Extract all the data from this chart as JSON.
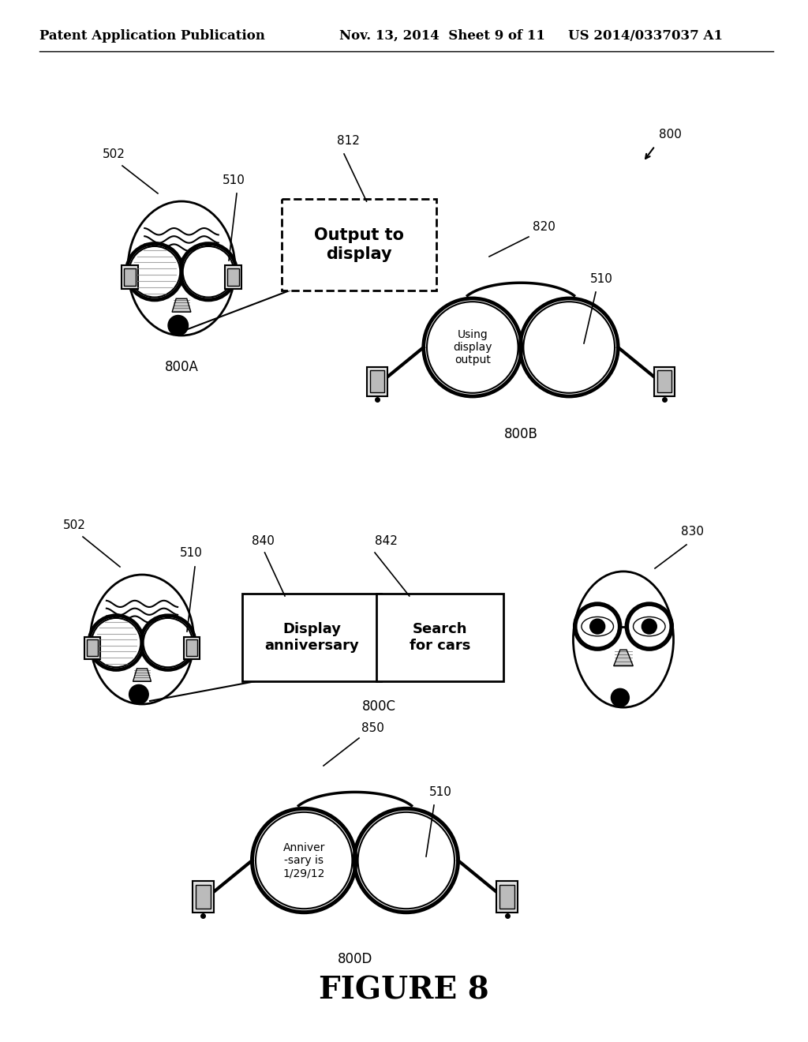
{
  "bg_color": "#ffffff",
  "header_left": "Patent Application Publication",
  "header_mid": "Nov. 13, 2014  Sheet 9 of 11",
  "header_right": "US 2014/0337037 A1",
  "figure_label": "FIGURE 8"
}
